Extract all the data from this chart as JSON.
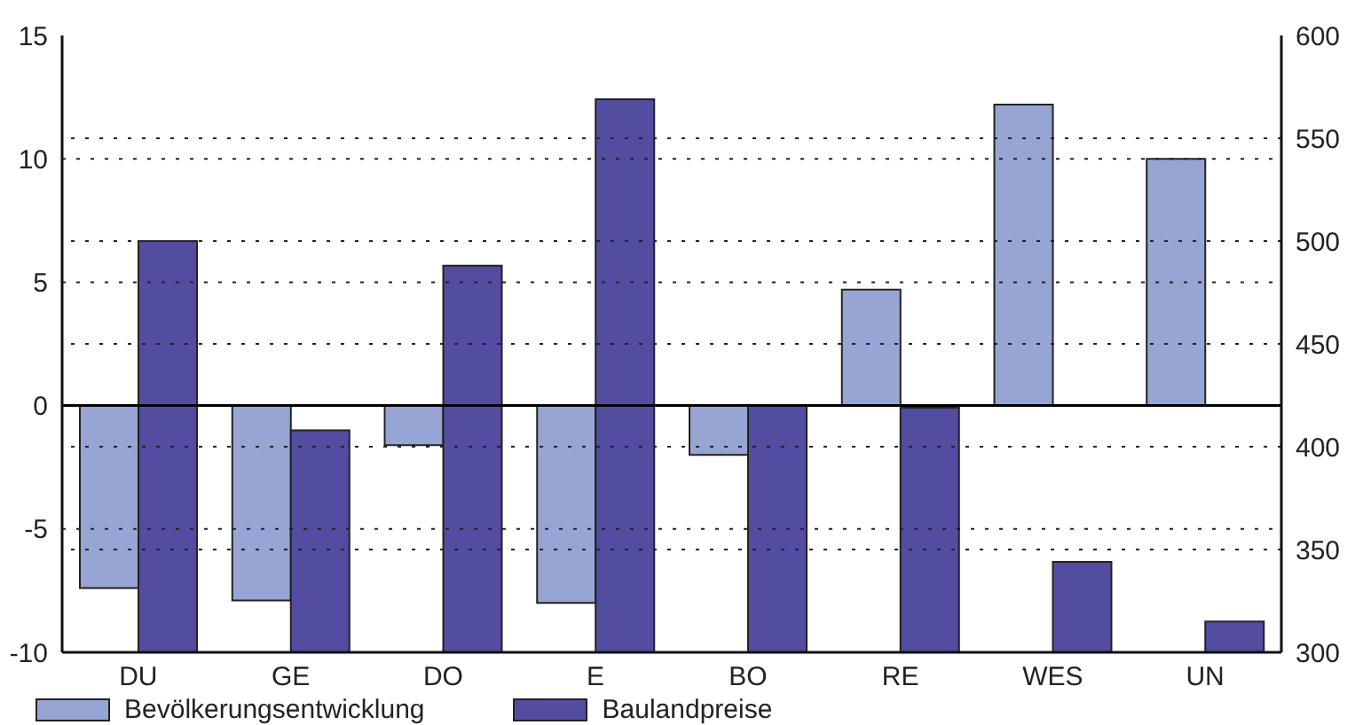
{
  "chart_data": {
    "type": "bar",
    "categories": [
      "DU",
      "GE",
      "DO",
      "E",
      "BO",
      "RE",
      "WES",
      "UN"
    ],
    "series": [
      {
        "name": "Bevölkerungsentwicklung",
        "color": "#97a5d4",
        "values": [
          -7.4,
          -7.9,
          -1.6,
          -8.0,
          -2.0,
          4.7,
          12.2,
          10.0
        ]
      },
      {
        "name": "Baulandpreise",
        "color": "#524da0",
        "axis": "y2",
        "values": [
          500,
          408,
          488,
          569,
          420,
          419,
          344,
          315
        ]
      }
    ],
    "ylim": [
      -10,
      15
    ],
    "yticks": [
      -10,
      -5,
      0,
      5,
      10,
      15
    ],
    "y2lim": [
      300,
      600
    ],
    "y2ticks": [
      300,
      350,
      400,
      450,
      500,
      550,
      600
    ],
    "ref_lines": [
      {
        "axis": "y",
        "value": 0,
        "color": "#000000",
        "line_style": "solid"
      }
    ],
    "grid": true,
    "legend": "bottom left"
  }
}
